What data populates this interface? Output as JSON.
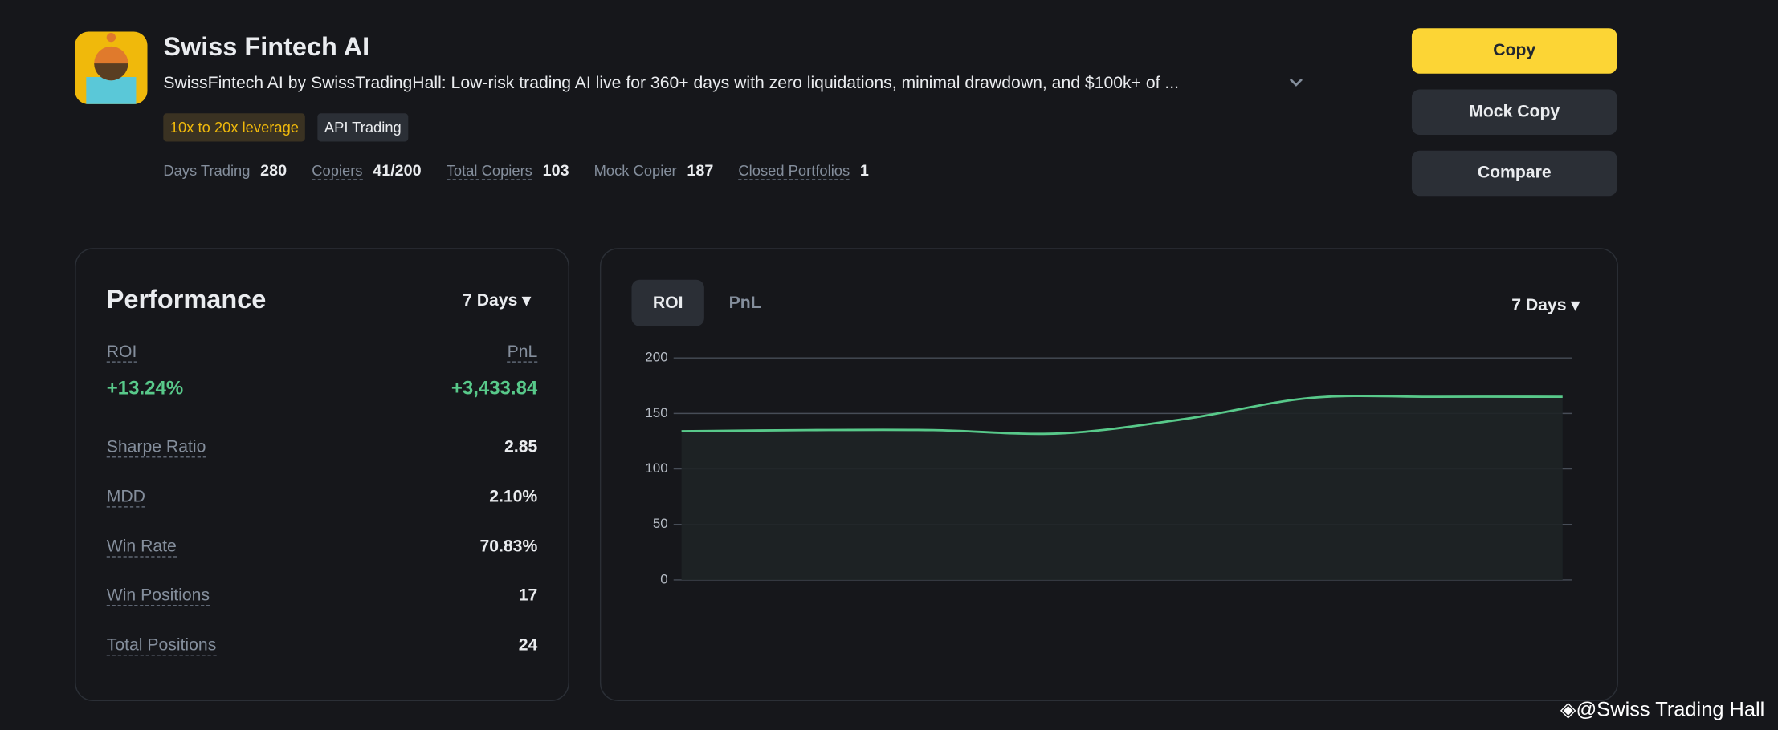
{
  "header": {
    "title": "Swiss Fintech AI",
    "description": "SwissFintech AI by SwissTradingHall: Low-risk trading AI live for 360+ days with zero liquidations, minimal drawdown, and $100k+ of ...",
    "tags": [
      "10x to 20x leverage",
      "API Trading"
    ],
    "stats": [
      {
        "label": "Days Trading",
        "value": 280
      },
      {
        "label": "Copiers",
        "value": "41/200"
      },
      {
        "label": "Total Copiers",
        "value": 103
      },
      {
        "label": "Mock Copier",
        "value": 187
      },
      {
        "label": "Closed Portfolios",
        "value": 1
      }
    ]
  },
  "buttons": [
    "Copy",
    "Mock Copy",
    "Compare"
  ],
  "performance": {
    "title": "Performance",
    "period": "7 Days",
    "roi_label": "ROI",
    "roi": "+13.24%",
    "pnl_label": "PnL",
    "pnl": "+3,433.84",
    "metrics": [
      {
        "label": "Sharpe Ratio",
        "value": "2.85"
      },
      {
        "label": "MDD",
        "value": "2.10%"
      },
      {
        "label": "Win Rate",
        "value": "70.83%"
      },
      {
        "label": "Win Positions",
        "value": 17
      },
      {
        "label": "Total Positions",
        "value": 24
      }
    ]
  },
  "chart_data": {
    "type": "line",
    "tabs": [
      "ROI",
      "PnL"
    ],
    "period": "7 Days",
    "categories": [
      null,
      null,
      null,
      null,
      null,
      null,
      null,
      null
    ],
    "values": [
      134,
      135,
      135,
      132,
      145,
      164,
      165,
      165
    ],
    "color": "#58c98a",
    "ylim": [
      0,
      200
    ],
    "yticks": [
      0,
      50,
      100,
      150,
      200
    ],
    "grid": true
  },
  "watermark": "@Swiss Trading Hall"
}
